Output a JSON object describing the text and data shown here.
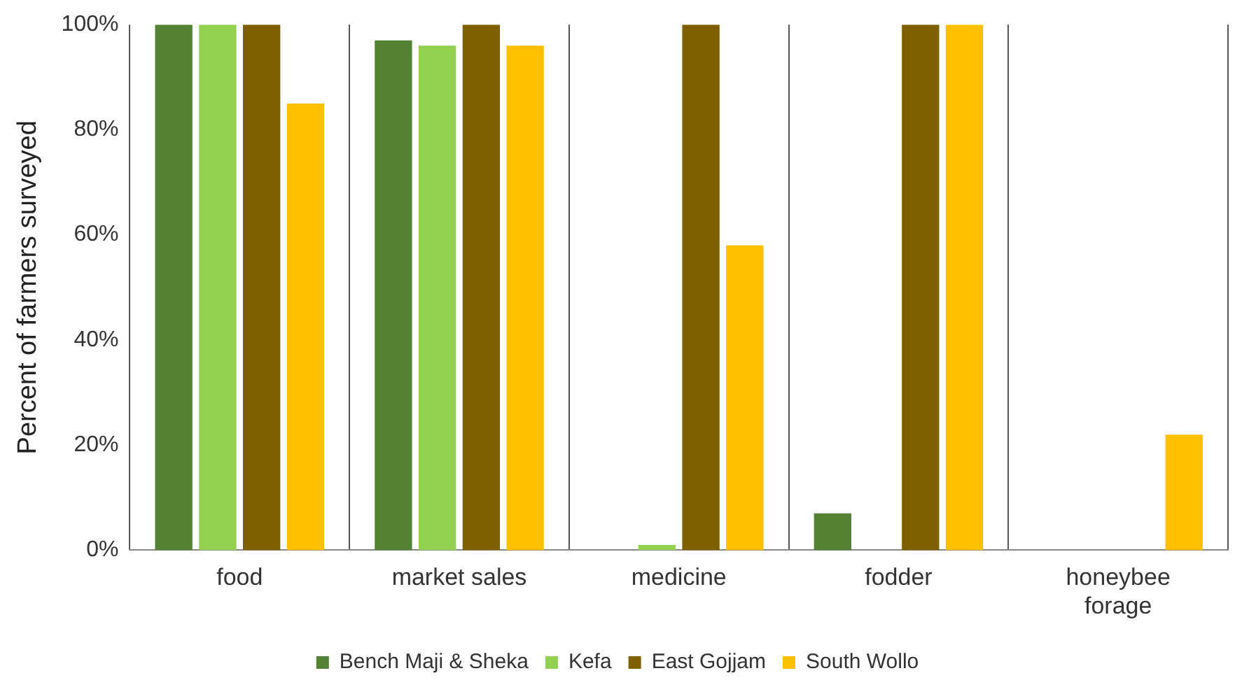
{
  "chart_data": {
    "type": "bar",
    "ylabel": "Percent of farmers surveyed",
    "categories": [
      "food",
      "market sales",
      "medicine",
      "fodder",
      "honeybee forage"
    ],
    "series": [
      {
        "name": "Bench Maji & Sheka",
        "color": "#548235",
        "values": [
          100,
          97,
          0,
          7,
          0
        ]
      },
      {
        "name": "Kefa",
        "color": "#92d050",
        "values": [
          100,
          96,
          1,
          0,
          0
        ]
      },
      {
        "name": "East Gojjam",
        "color": "#7f6000",
        "values": [
          100,
          100,
          100,
          100,
          0
        ]
      },
      {
        "name": "South Wollo",
        "color": "#ffc000",
        "values": [
          85,
          96,
          58,
          100,
          22
        ]
      }
    ],
    "ylim": [
      0,
      100
    ],
    "yticks": [
      {
        "value": 0,
        "label": "0%"
      },
      {
        "value": 20,
        "label": "20%"
      },
      {
        "value": 40,
        "label": "40%"
      },
      {
        "value": 60,
        "label": "60%"
      },
      {
        "value": 80,
        "label": "80%"
      },
      {
        "value": 100,
        "label": "100%"
      }
    ],
    "grid": "x",
    "legend": "bottom"
  }
}
